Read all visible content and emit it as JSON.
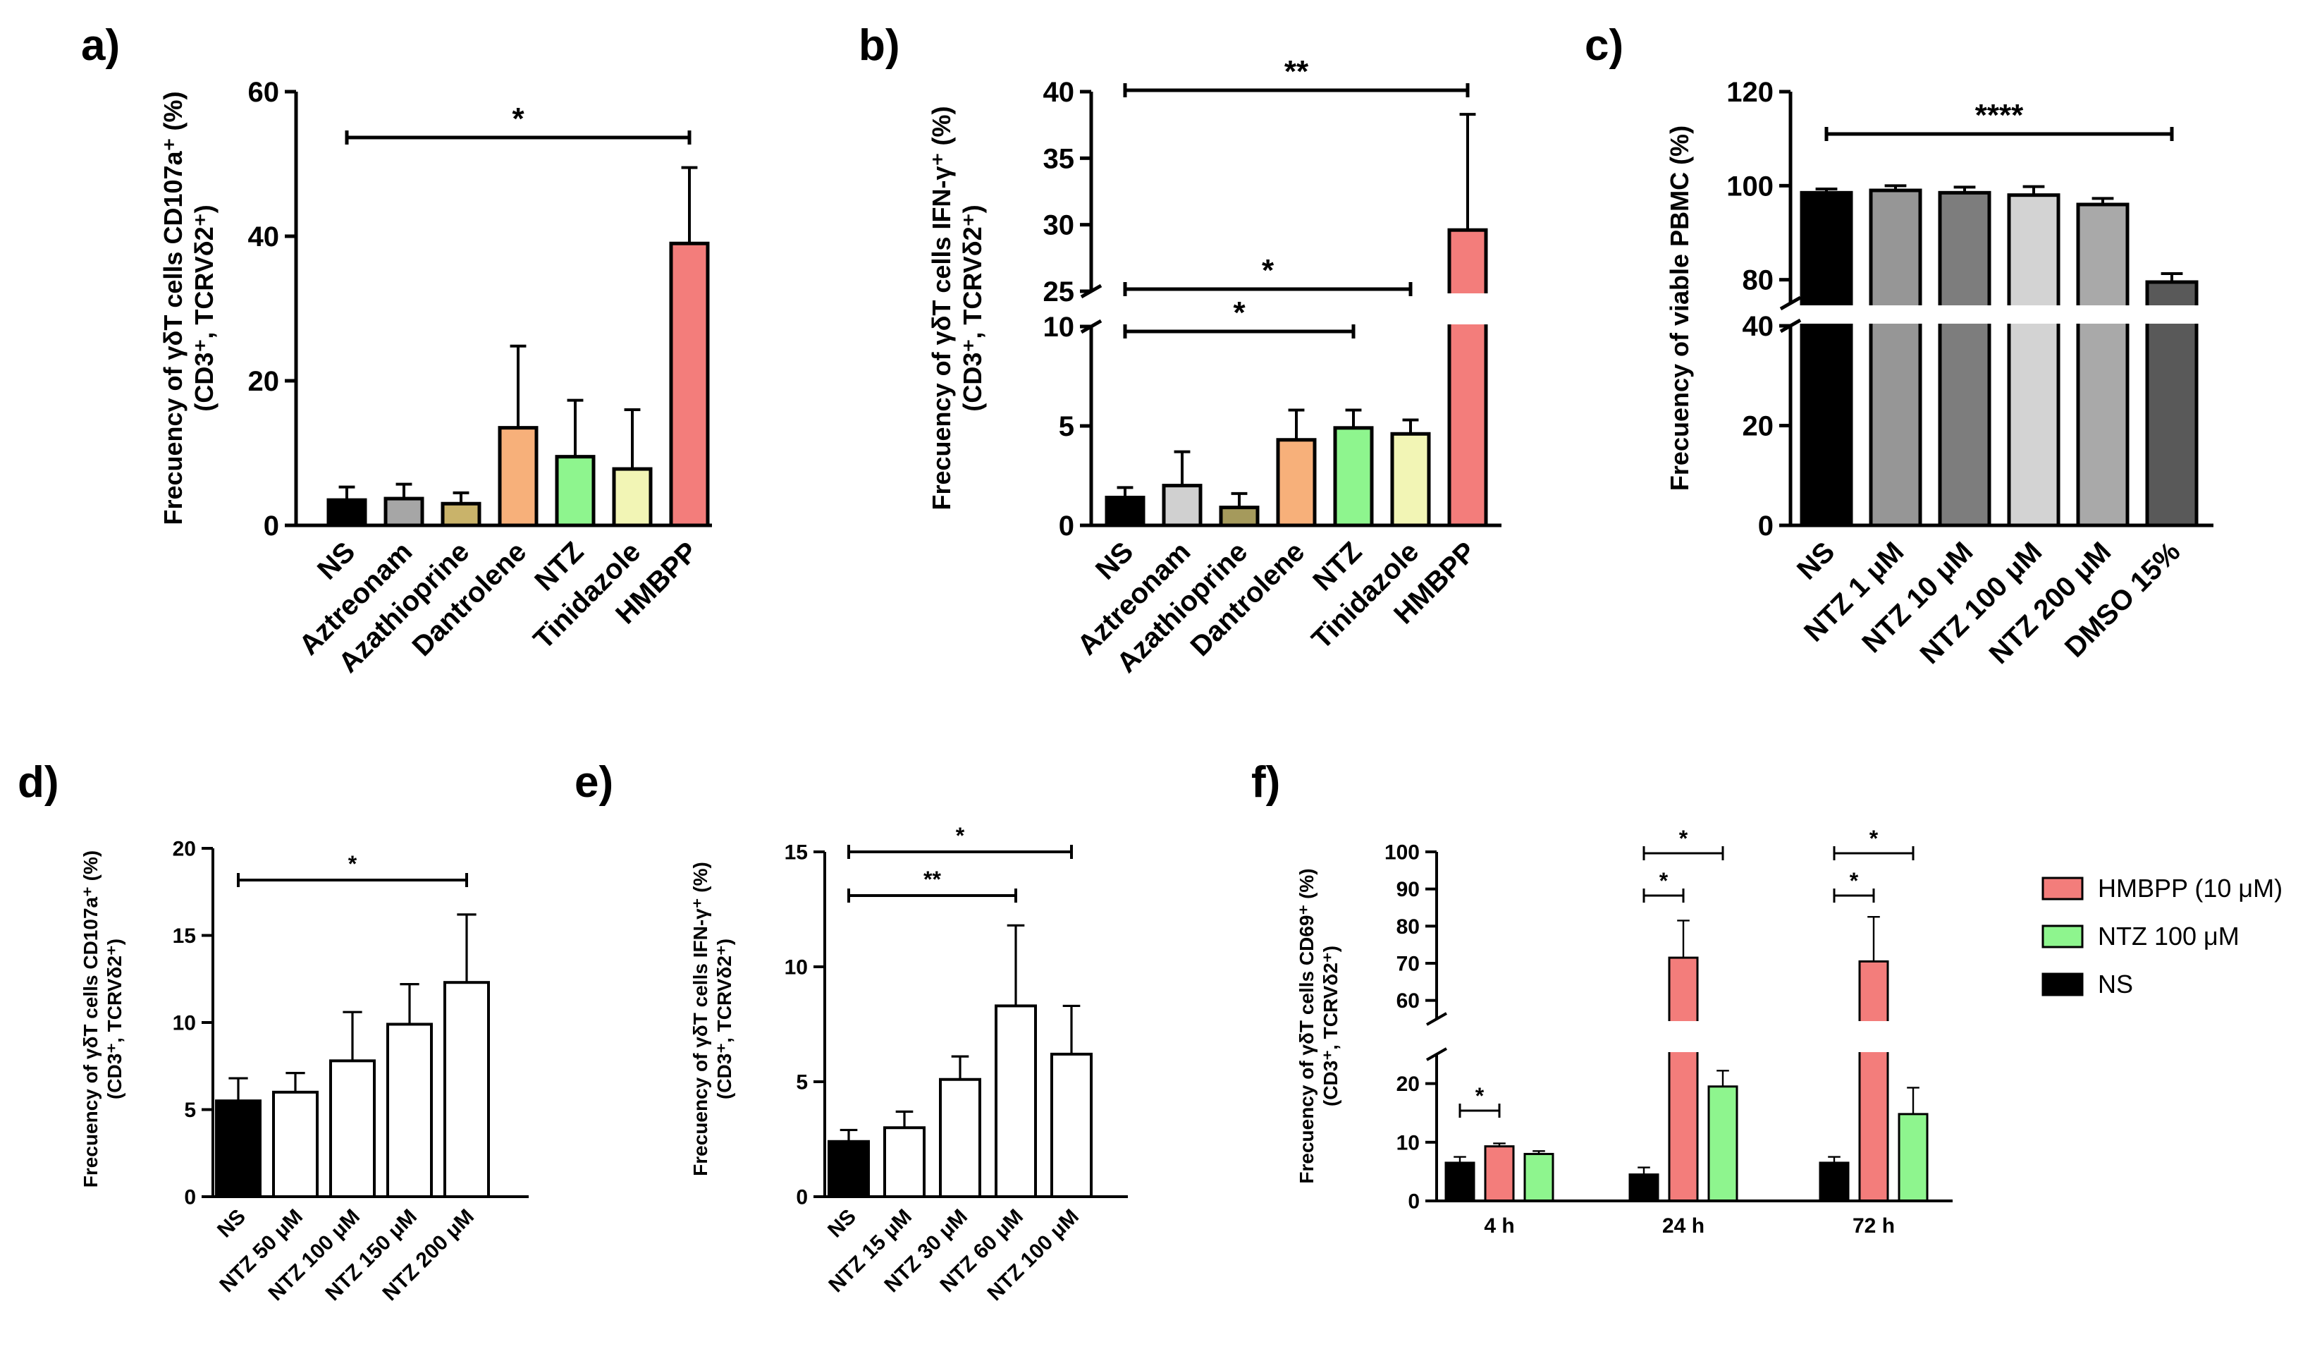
{
  "chart_data": [
    {
      "id": "a",
      "type": "bar",
      "panel_label": "a)",
      "ylabel_lines": [
        "Frecuency of γδT cells CD107a⁺ (%)",
        "(CD3⁺, TCRVδ2⁺)"
      ],
      "categories": [
        "NS",
        "Aztreonam",
        "Azathioprine",
        "Dantrolene",
        "NTZ",
        "Tinidazole",
        "HMBPP"
      ],
      "values": [
        3.5,
        3.7,
        3.0,
        13.5,
        9.5,
        7.8,
        39.0
      ],
      "errors": [
        1.8,
        2.0,
        1.5,
        11.3,
        7.8,
        8.2,
        10.5
      ],
      "colors": [
        "#000000",
        "#a6a6a6",
        "#c9b36a",
        "#f7b07a",
        "#8ef58e",
        "#f2f5b5",
        "#f37d7b"
      ],
      "ylim": [
        0,
        60
      ],
      "yticks": [
        "0",
        "20",
        "40",
        "60"
      ],
      "significance": [
        {
          "from": 0,
          "to": 6,
          "label": "*"
        }
      ]
    },
    {
      "id": "b",
      "type": "bar",
      "panel_label": "b)",
      "ylabel_lines": [
        "Frecuency of γδT cells IFN-γ⁺ (%)",
        "(CD3⁺, TCRVδ2⁺)"
      ],
      "categories": [
        "NS",
        "Aztreonam",
        "Azathioprine",
        "Dantrolene",
        "NTZ",
        "Tinidazole",
        "HMBPP"
      ],
      "values": [
        1.4,
        2.0,
        0.9,
        4.3,
        4.9,
        4.6,
        29.6
      ],
      "errors": [
        0.5,
        1.7,
        0.7,
        1.5,
        0.9,
        0.7,
        8.7
      ],
      "colors": [
        "#000000",
        "#d0d0d0",
        "#a59a5c",
        "#f7b07a",
        "#8ef58e",
        "#f2f5b5",
        "#f37d7b"
      ],
      "ylim_lower": [
        0,
        10
      ],
      "ylim_upper": [
        25,
        40
      ],
      "yticks": [
        "0",
        "5",
        "10",
        "25",
        "30",
        "35",
        "40"
      ],
      "significance": [
        {
          "from": 0,
          "to": 6,
          "label": "**"
        },
        {
          "from": 0,
          "to": 5,
          "label": "*"
        },
        {
          "from": 0,
          "to": 4,
          "label": "*"
        }
      ]
    },
    {
      "id": "c",
      "type": "bar",
      "panel_label": "c)",
      "ylabel_lines": [
        "Frecuency of viable PBMC (%)"
      ],
      "categories": [
        "NS",
        "NTZ 1 μM",
        "NTZ 10 μM",
        "NTZ 100 μM",
        "NTZ 200 μM",
        "DMSO 15%"
      ],
      "values": [
        98.5,
        99.0,
        98.5,
        98.0,
        96.0,
        79.5
      ],
      "errors": [
        0.8,
        1.0,
        1.2,
        1.8,
        1.3,
        1.8
      ],
      "colors": [
        "#000000",
        "#969696",
        "#7d7d7d",
        "#d3d3d3",
        "#a9a9a9",
        "#595959"
      ],
      "ylim_lower": [
        0,
        40
      ],
      "ylim_upper": [
        75,
        120
      ],
      "yticks": [
        "0",
        "20",
        "40",
        "80",
        "100",
        "120"
      ],
      "significance": [
        {
          "from": 0,
          "to": 5,
          "label": "****"
        }
      ]
    },
    {
      "id": "d",
      "type": "bar",
      "panel_label": "d)",
      "ylabel_lines": [
        "Frecuency of γδT cells CD107a⁺ (%)",
        "(CD3⁺, TCRVδ2⁺)"
      ],
      "categories": [
        "NS",
        "NTZ 50 μM",
        "NTZ 100 μM",
        "NTZ 150 μM",
        "NTZ 200 μM"
      ],
      "values": [
        5.5,
        6.0,
        7.8,
        9.9,
        12.3
      ],
      "errors": [
        1.3,
        1.1,
        2.8,
        2.3,
        3.9
      ],
      "colors": [
        "#000000",
        "#ffffff",
        "#ffffff",
        "#ffffff",
        "#ffffff"
      ],
      "ylim": [
        0,
        20
      ],
      "yticks": [
        "0",
        "5",
        "10",
        "15",
        "20"
      ],
      "significance": [
        {
          "from": 0,
          "to": 4,
          "label": "*"
        }
      ]
    },
    {
      "id": "e",
      "type": "bar",
      "panel_label": "e)",
      "ylabel_lines": [
        "Frecuency of γδT cells IFN-γ⁺ (%)",
        "(CD3⁺, TCRVδ2⁺)"
      ],
      "categories": [
        "NS",
        "NTZ 15 μM",
        "NTZ 30 μM",
        "NTZ 60 μM",
        "NTZ 100 μM"
      ],
      "values": [
        2.4,
        3.0,
        5.1,
        8.3,
        6.2
      ],
      "errors": [
        0.5,
        0.7,
        1.0,
        3.5,
        2.1
      ],
      "colors": [
        "#000000",
        "#ffffff",
        "#ffffff",
        "#ffffff",
        "#ffffff"
      ],
      "ylim": [
        0,
        15
      ],
      "yticks": [
        "0",
        "5",
        "10",
        "15"
      ],
      "significance": [
        {
          "from": 0,
          "to": 4,
          "label": "*"
        },
        {
          "from": 0,
          "to": 3,
          "label": "**"
        }
      ]
    },
    {
      "id": "f",
      "type": "bar",
      "panel_label": "f)",
      "ylabel_lines": [
        "Frecuency of γδT cells CD69⁺ (%)",
        "(CD3⁺, TCRVδ2⁺)"
      ],
      "categories": [
        "4 h",
        "24 h",
        "72 h"
      ],
      "series": [
        {
          "name": "NS",
          "values": [
            6.5,
            4.5,
            6.5
          ],
          "errors": [
            1.0,
            1.2,
            1.0
          ],
          "color": "#000000"
        },
        {
          "name": "HMBPP (10 μM)",
          "values": [
            9.3,
            71.5,
            70.5
          ],
          "errors": [
            0.5,
            10.0,
            12.0
          ],
          "color": "#f37d7b"
        },
        {
          "name": "NTZ 100 μM",
          "values": [
            8.0,
            19.5,
            14.8
          ],
          "errors": [
            0.5,
            2.7,
            4.5
          ],
          "color": "#8ef58e"
        }
      ],
      "legend_order": [
        "HMBPP (10 μM)",
        "NTZ 100 μM",
        "NS"
      ],
      "ylim_lower": [
        0,
        25
      ],
      "ylim_upper": [
        55,
        100
      ],
      "yticks": [
        "0",
        "10",
        "20",
        "60",
        "70",
        "80",
        "90",
        "100"
      ],
      "significance": [
        {
          "group": 0,
          "from_series": 0,
          "to_series": 1,
          "label": "*"
        },
        {
          "group": 1,
          "from_series": 0,
          "to_series": 1,
          "label": "*"
        },
        {
          "group": 1,
          "from_series": 0,
          "to_series": 2,
          "label": "*"
        },
        {
          "group": 2,
          "from_series": 0,
          "to_series": 1,
          "label": "*"
        },
        {
          "group": 2,
          "from_series": 0,
          "to_series": 2,
          "label": "*"
        }
      ]
    }
  ]
}
